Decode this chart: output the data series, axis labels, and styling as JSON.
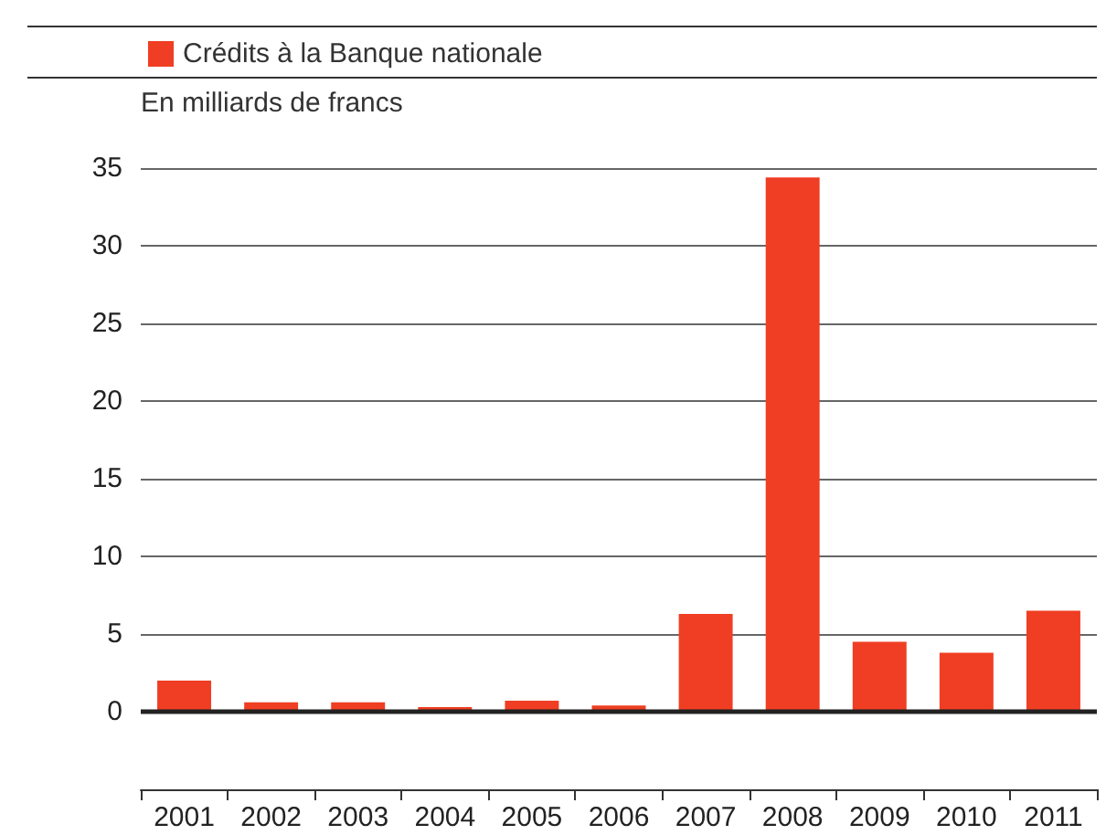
{
  "chart_data": {
    "type": "bar",
    "ylabel": "En milliards de francs",
    "categories": [
      "2001",
      "2002",
      "2003",
      "2004",
      "2005",
      "2006",
      "2007",
      "2008",
      "2009",
      "2010",
      "2011"
    ],
    "series": [
      {
        "name": "Crédits à la Banque nationale",
        "color": "#ef3e23",
        "values": [
          2.0,
          0.6,
          0.6,
          0.3,
          0.7,
          0.4,
          6.3,
          34.4,
          4.5,
          3.8,
          6.5
        ]
      }
    ],
    "ylim": [
      -5,
      35
    ],
    "yticks": [
      0,
      5,
      10,
      15,
      20,
      25,
      30,
      35
    ],
    "ref_lines": [
      {
        "axis": "y",
        "value": 0,
        "color": "#222222"
      }
    ],
    "grid": "y",
    "legend": "top left"
  }
}
